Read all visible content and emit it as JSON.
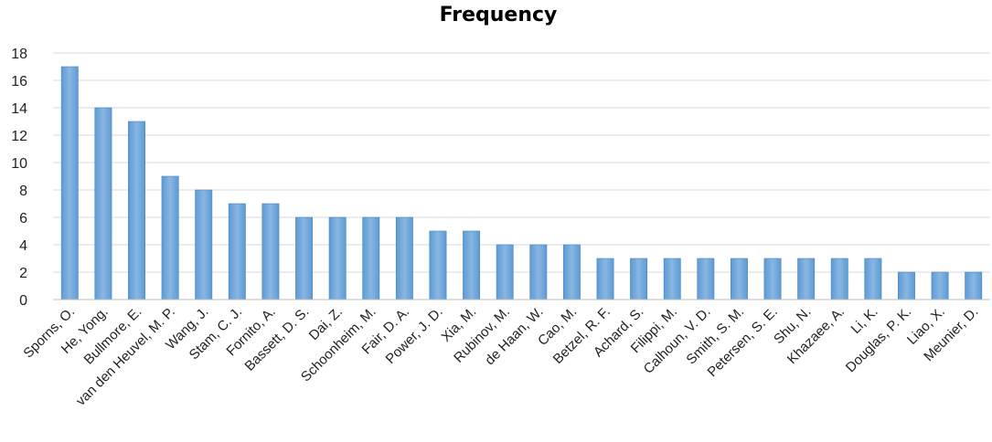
{
  "chart_data": {
    "type": "bar",
    "title": "Frequency",
    "categories": [
      "Sporns, O.",
      "He, Yong.",
      "Bullmore, E.",
      "van den Heuvel, M. P.",
      "Wang, J.",
      "Stam, C. J.",
      "Fornito, A.",
      "Bassett, D. S.",
      "Dai, Z.",
      "Schoonheim, M.",
      "Fair, D. A.",
      "Power, J. D.",
      "Xia, M.",
      "Rubinov, M.",
      "de Haan, W.",
      "Cao, M.",
      "Betzel, R. F.",
      "Achard, S.",
      "Filippi, M.",
      "Calhoun, V. D.",
      "Smith, S. M.",
      "Petersen, S. E.",
      "Shu, N.",
      "Khazaee, A.",
      "Li, K.",
      "Douglas, P. K.",
      "Liao, X.",
      "Meunier, D."
    ],
    "values": [
      17,
      14,
      13,
      9,
      8,
      7,
      7,
      6,
      6,
      6,
      6,
      5,
      5,
      4,
      4,
      4,
      3,
      3,
      3,
      3,
      3,
      3,
      3,
      3,
      3,
      2,
      2,
      2
    ],
    "yticks": [
      "0",
      "2",
      "4",
      "6",
      "8",
      "10",
      "12",
      "14",
      "16",
      "18"
    ],
    "ylim": [
      0,
      18
    ],
    "grid": true,
    "legend": "none",
    "colors": {
      "bar": "#5b9bd5",
      "bar_light": "#8ab6e2",
      "bar_edge": "#4a86c0"
    }
  }
}
